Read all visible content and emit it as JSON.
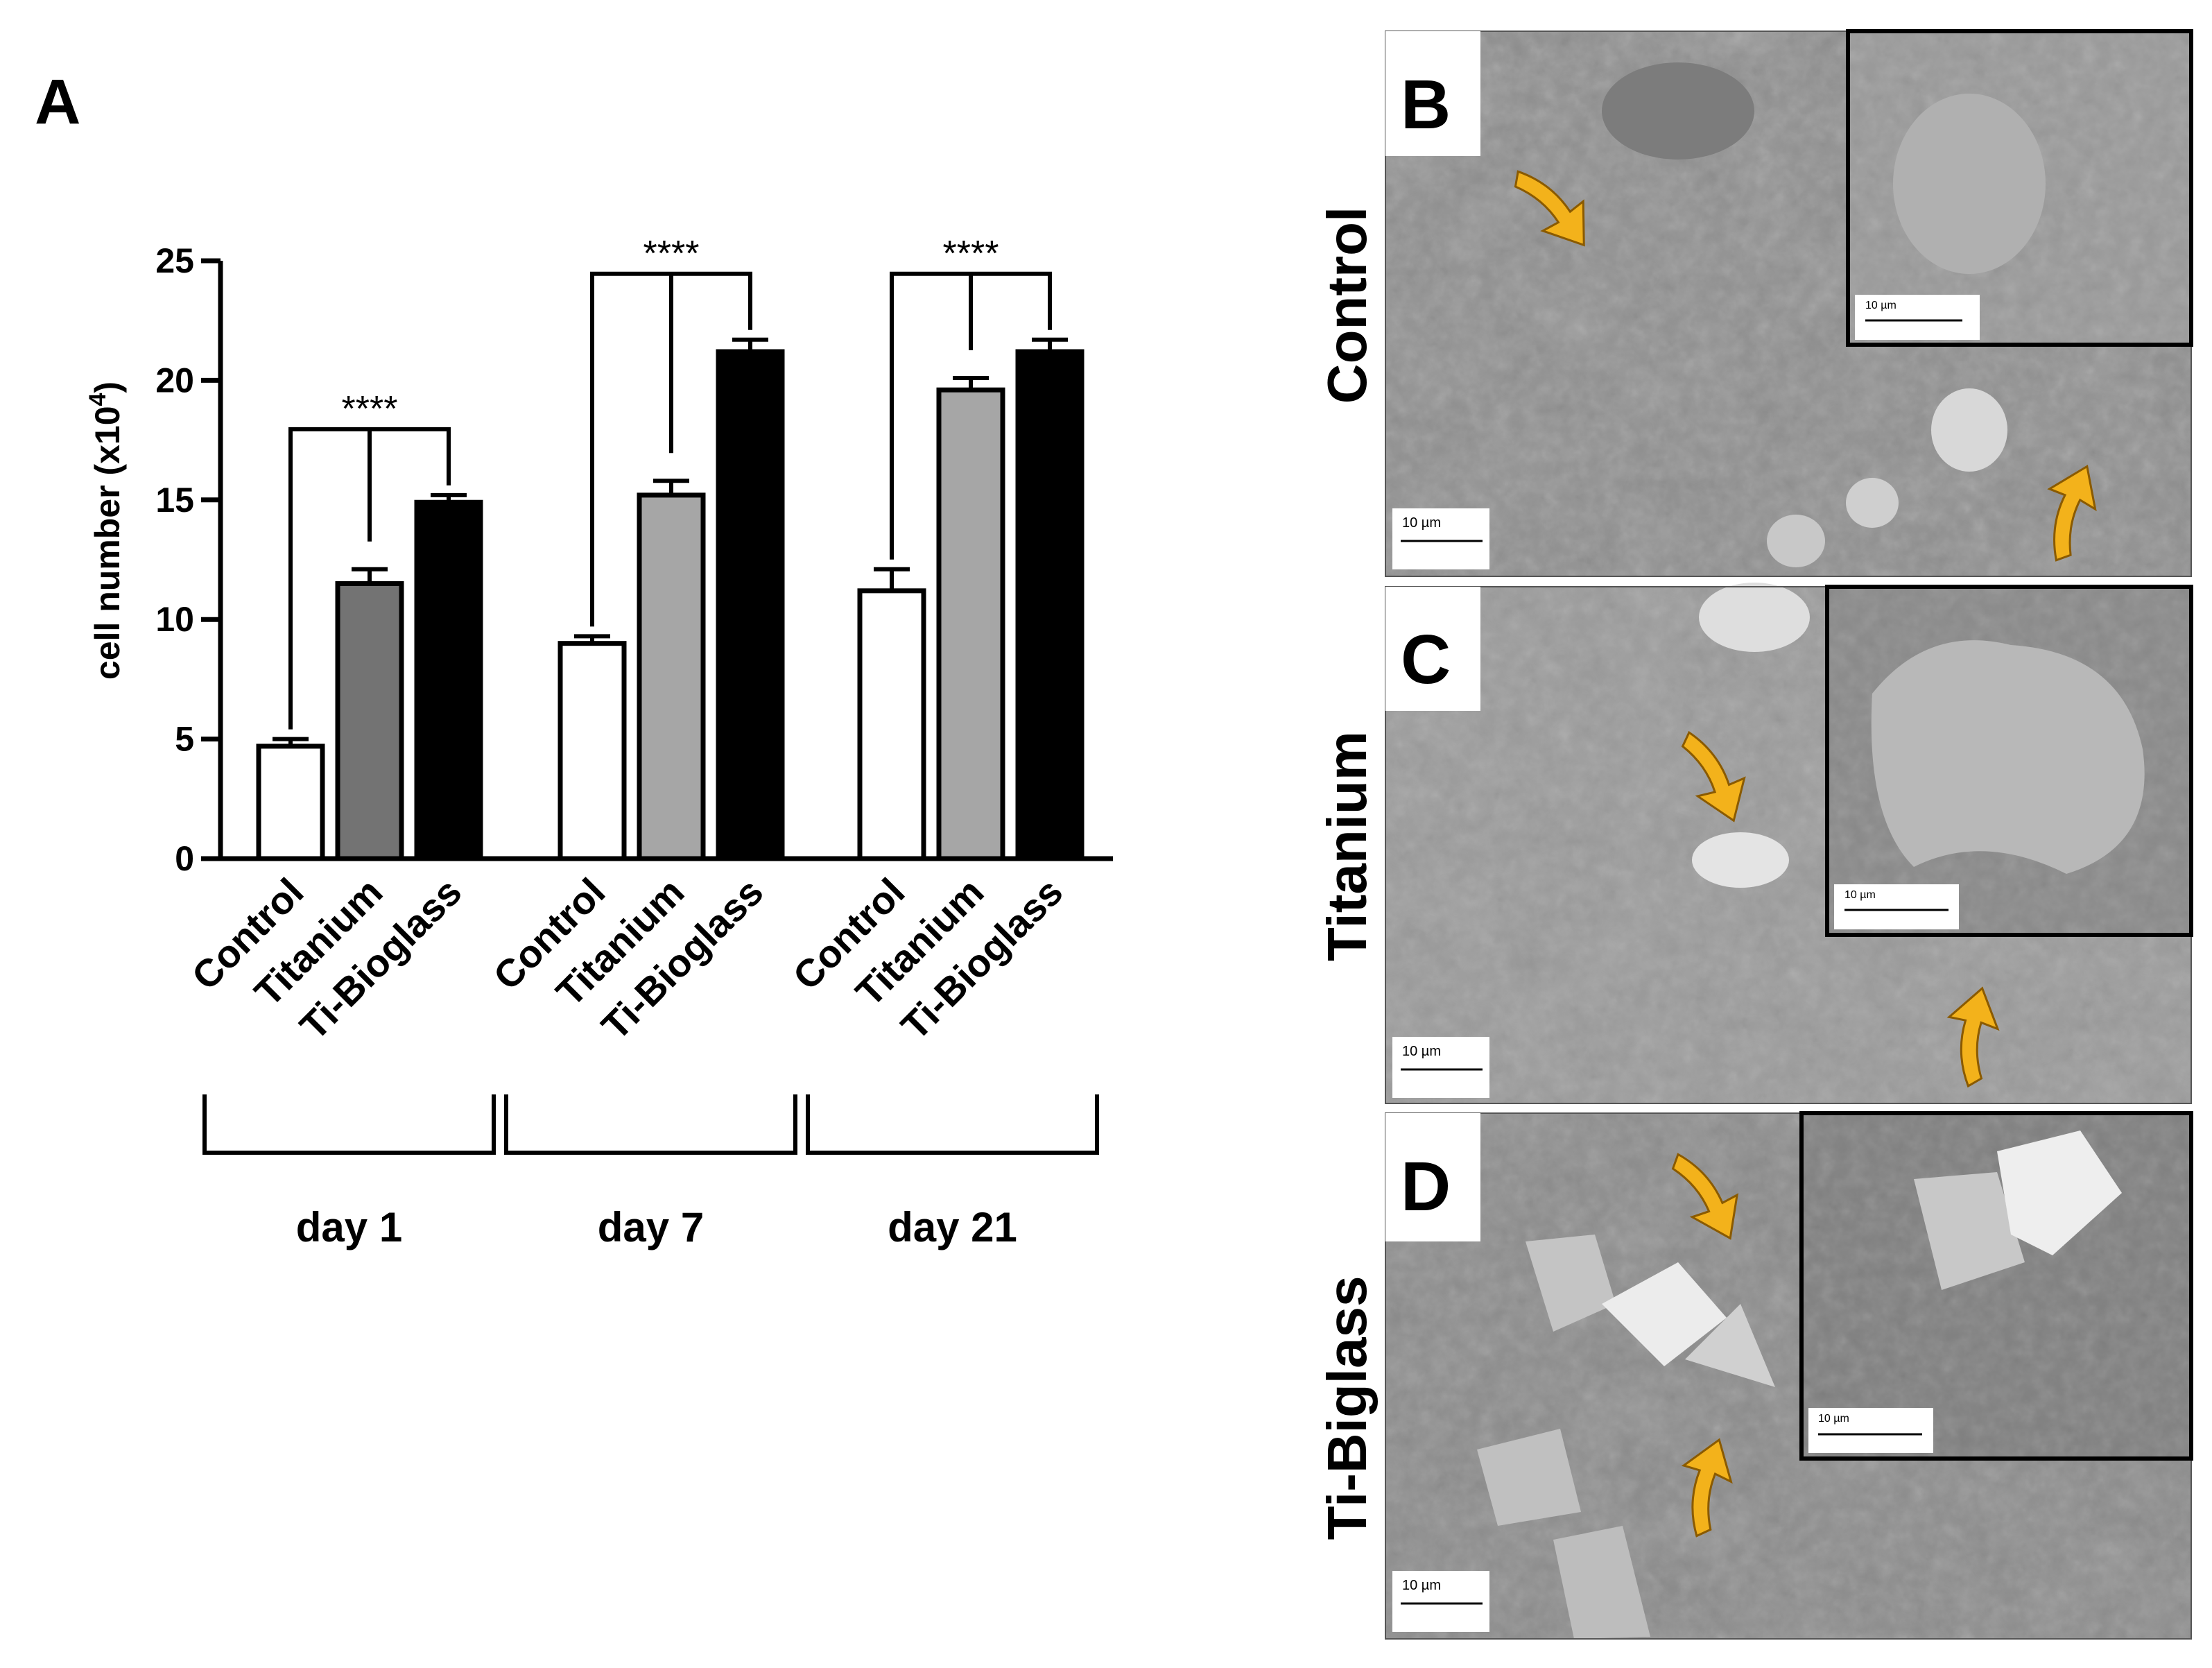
{
  "panel_letters": {
    "a": "A",
    "b": "B",
    "c": "C",
    "d": "D"
  },
  "row_labels": {
    "b": "Control",
    "c": "Titanium",
    "d": "Ti-Biglass"
  },
  "scale_bar_label": "10 µm",
  "colors": {
    "control": "#ffffff",
    "titanium_day1": "#737373",
    "titanium_later": "#a6a6a6",
    "ti_bioglass": "#000000",
    "arrow": "#f3b21b",
    "sem_background": "#8c8c8c"
  },
  "chart_data": {
    "type": "bar",
    "ylabel": "cell number (x10",
    "ylabel_superscript": "4",
    "ylabel_suffix": ")",
    "ylim": [
      0,
      25
    ],
    "yticks": [
      "0",
      "5",
      "10",
      "15",
      "20",
      "25"
    ],
    "groups": [
      {
        "label": "day 1",
        "bars": [
          {
            "category": "Control",
            "value": 4.7,
            "error": 0.3
          },
          {
            "category": "Titanium",
            "value": 11.5,
            "error": 0.6
          },
          {
            "category": "Ti-Bioglass",
            "value": 14.9,
            "error": 0.3
          }
        ],
        "significance": "****"
      },
      {
        "label": "day 7",
        "bars": [
          {
            "category": "Control",
            "value": 9.0,
            "error": 0.3
          },
          {
            "category": "Titanium",
            "value": 15.2,
            "error": 0.6
          },
          {
            "category": "Ti-Bioglass",
            "value": 21.2,
            "error": 0.5
          }
        ],
        "significance": "****"
      },
      {
        "label": "day 21",
        "bars": [
          {
            "category": "Control",
            "value": 11.2,
            "error": 0.9
          },
          {
            "category": "Titanium",
            "value": 19.6,
            "error": 0.5
          },
          {
            "category": "Ti-Bioglass",
            "value": 21.2,
            "error": 0.5
          }
        ],
        "significance": "****"
      }
    ]
  }
}
